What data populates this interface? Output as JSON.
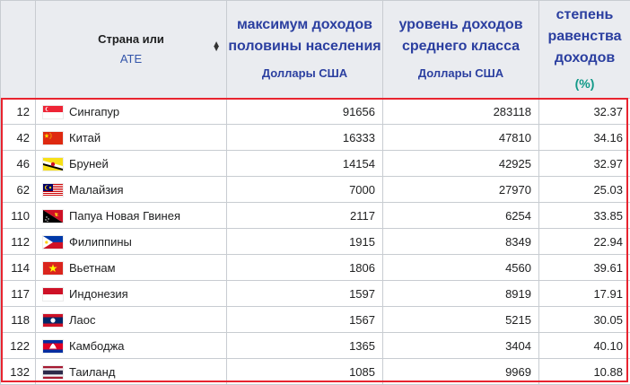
{
  "header": {
    "country_line1": "Страна или",
    "country_line2": "АТЕ",
    "col_max_income": "максимум доходов половины населения",
    "col_max_income_unit": "Доллары США",
    "col_middle_class": "уровень доходов среднего класса",
    "col_middle_class_unit": "Доллары США",
    "col_equality": "степень равенства доходов",
    "col_equality_unit": "(%)"
  },
  "rows": [
    {
      "rank": "12",
      "country": "Сингапур",
      "flag": "singapore-flag",
      "max_income": "91656",
      "middle_class": "283118",
      "equality": "32.37"
    },
    {
      "rank": "42",
      "country": "Китай",
      "flag": "china-flag",
      "max_income": "16333",
      "middle_class": "47810",
      "equality": "34.16"
    },
    {
      "rank": "46",
      "country": "Бруней",
      "flag": "brunei-flag",
      "max_income": "14154",
      "middle_class": "42925",
      "equality": "32.97"
    },
    {
      "rank": "62",
      "country": "Малайзия",
      "flag": "malaysia-flag",
      "max_income": "7000",
      "middle_class": "27970",
      "equality": "25.03"
    },
    {
      "rank": "110",
      "country": "Папуа Новая Гвинея",
      "flag": "papua-new-guinea-flag",
      "max_income": "2117",
      "middle_class": "6254",
      "equality": "33.85"
    },
    {
      "rank": "112",
      "country": "Филиппины",
      "flag": "philippines-flag",
      "max_income": "1915",
      "middle_class": "8349",
      "equality": "22.94"
    },
    {
      "rank": "114",
      "country": "Вьетнам",
      "flag": "vietnam-flag",
      "max_income": "1806",
      "middle_class": "4560",
      "equality": "39.61"
    },
    {
      "rank": "117",
      "country": "Индонезия",
      "flag": "indonesia-flag",
      "max_income": "1597",
      "middle_class": "8919",
      "equality": "17.91"
    },
    {
      "rank": "118",
      "country": "Лаос",
      "flag": "laos-flag",
      "max_income": "1567",
      "middle_class": "5215",
      "equality": "30.05"
    },
    {
      "rank": "122",
      "country": "Камбоджа",
      "flag": "cambodia-flag",
      "max_income": "1365",
      "middle_class": "3404",
      "equality": "40.10"
    },
    {
      "rank": "132",
      "country": "Таиланд",
      "flag": "thailand-flag",
      "max_income": "1085",
      "middle_class": "9969",
      "equality": "10.88"
    }
  ],
  "colors": {
    "header_text": "#2b3fa0",
    "percent_text": "#119988",
    "highlight_border": "#e8242f",
    "header_bg": "#eaecf0"
  }
}
